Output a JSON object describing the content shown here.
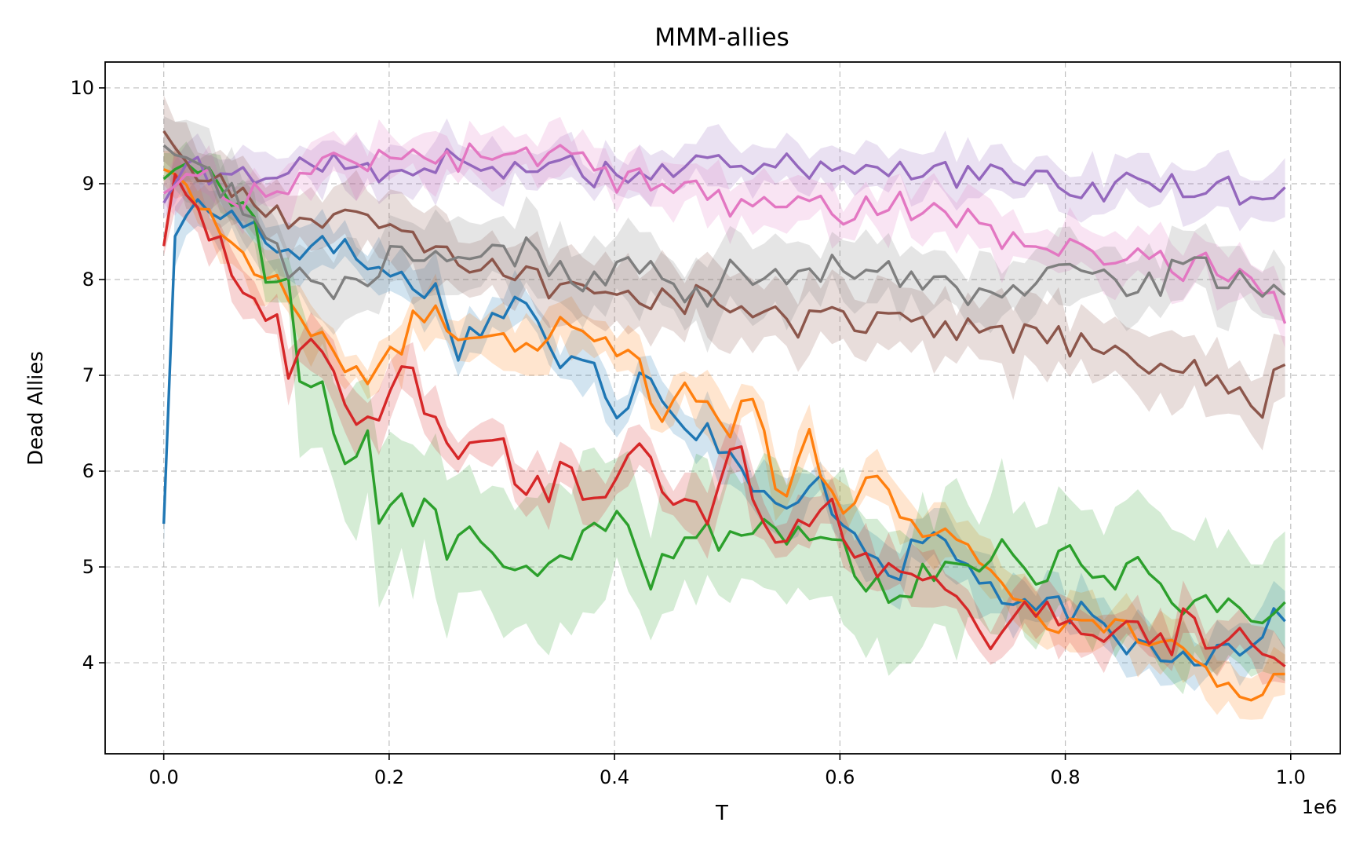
{
  "chart_data": {
    "type": "line",
    "title": "MMM-allies",
    "xlabel": "T",
    "ylabel": "Dead Allies",
    "x_offset_label": "1e6",
    "xlim": [
      -0.052,
      1.044
    ],
    "ylim": [
      3.05,
      10.27
    ],
    "x_ticks": [
      0.0,
      0.2,
      0.4,
      0.6,
      0.8,
      1.0
    ],
    "x_tick_labels": [
      "0.0",
      "0.2",
      "0.4",
      "0.6",
      "0.8",
      "1.0"
    ],
    "y_ticks": [
      4,
      5,
      6,
      7,
      8,
      9,
      10
    ],
    "y_tick_labels": [
      "4",
      "5",
      "6",
      "7",
      "8",
      "9",
      "10"
    ],
    "grid": true,
    "legend": "none",
    "x": [
      0.0,
      0.1,
      0.2,
      0.3,
      0.4,
      0.5,
      0.6,
      0.7,
      0.8,
      0.9,
      0.99
    ],
    "series": [
      {
        "color": "#1f77b4",
        "anchors": [
          [
            0.0,
            5.45
          ],
          [
            0.01,
            8.45
          ],
          [
            0.02,
            8.75
          ],
          [
            0.05,
            8.7
          ],
          [
            0.08,
            8.55
          ],
          [
            0.1,
            8.4
          ],
          [
            0.12,
            8.2
          ],
          [
            0.14,
            8.55
          ],
          [
            0.16,
            8.3
          ],
          [
            0.2,
            8.05
          ],
          [
            0.24,
            7.9
          ],
          [
            0.26,
            7.3
          ],
          [
            0.28,
            7.5
          ],
          [
            0.32,
            7.85
          ],
          [
            0.35,
            7.0
          ],
          [
            0.38,
            7.3
          ],
          [
            0.4,
            6.6
          ],
          [
            0.43,
            7.1
          ],
          [
            0.46,
            6.5
          ],
          [
            0.5,
            6.3
          ],
          [
            0.52,
            5.85
          ],
          [
            0.55,
            5.5
          ],
          [
            0.58,
            5.9
          ],
          [
            0.61,
            5.4
          ],
          [
            0.65,
            4.95
          ],
          [
            0.68,
            5.35
          ],
          [
            0.72,
            4.95
          ],
          [
            0.76,
            4.5
          ],
          [
            0.8,
            4.6
          ],
          [
            0.84,
            4.25
          ],
          [
            0.88,
            4.15
          ],
          [
            0.92,
            4.1
          ],
          [
            0.96,
            4.2
          ],
          [
            0.99,
            4.55
          ]
        ],
        "values": [
          5.45,
          8.4,
          8.05,
          7.75,
          6.6,
          6.3,
          5.55,
          4.95,
          4.6,
          4.1,
          4.55
        ]
      },
      {
        "color": "#ff7f0e",
        "anchors": [
          [
            0.0,
            9.15
          ],
          [
            0.02,
            9.05
          ],
          [
            0.05,
            8.5
          ],
          [
            0.08,
            8.2
          ],
          [
            0.1,
            8.0
          ],
          [
            0.12,
            7.6
          ],
          [
            0.14,
            7.3
          ],
          [
            0.16,
            7.2
          ],
          [
            0.19,
            6.95
          ],
          [
            0.22,
            7.5
          ],
          [
            0.24,
            7.8
          ],
          [
            0.26,
            7.3
          ],
          [
            0.29,
            7.55
          ],
          [
            0.32,
            7.3
          ],
          [
            0.35,
            7.55
          ],
          [
            0.38,
            7.4
          ],
          [
            0.42,
            7.3
          ],
          [
            0.44,
            6.5
          ],
          [
            0.47,
            6.9
          ],
          [
            0.5,
            6.4
          ],
          [
            0.52,
            6.9
          ],
          [
            0.55,
            5.6
          ],
          [
            0.57,
            6.55
          ],
          [
            0.6,
            5.5
          ],
          [
            0.63,
            5.95
          ],
          [
            0.66,
            5.5
          ],
          [
            0.7,
            5.3
          ],
          [
            0.72,
            5.15
          ],
          [
            0.76,
            4.65
          ],
          [
            0.8,
            4.35
          ],
          [
            0.84,
            4.35
          ],
          [
            0.88,
            4.3
          ],
          [
            0.92,
            3.85
          ],
          [
            0.96,
            3.65
          ],
          [
            0.99,
            3.9
          ]
        ],
        "values": [
          9.15,
          8.0,
          6.95,
          7.6,
          7.3,
          6.4,
          5.5,
          5.3,
          4.35,
          4.0,
          3.9
        ]
      },
      {
        "color": "#2ca02c",
        "anchors": [
          [
            0.0,
            9.05
          ],
          [
            0.02,
            9.25
          ],
          [
            0.05,
            8.95
          ],
          [
            0.08,
            8.7
          ],
          [
            0.09,
            8.05
          ],
          [
            0.11,
            8.1
          ],
          [
            0.12,
            6.9
          ],
          [
            0.14,
            6.9
          ],
          [
            0.15,
            6.25
          ],
          [
            0.17,
            6.15
          ],
          [
            0.18,
            6.35
          ],
          [
            0.19,
            5.5
          ],
          [
            0.21,
            5.8
          ],
          [
            0.22,
            5.3
          ],
          [
            0.23,
            5.85
          ],
          [
            0.25,
            5.15
          ],
          [
            0.27,
            5.55
          ],
          [
            0.3,
            4.95
          ],
          [
            0.33,
            4.9
          ],
          [
            0.36,
            5.1
          ],
          [
            0.39,
            5.55
          ],
          [
            0.42,
            5.35
          ],
          [
            0.43,
            4.85
          ],
          [
            0.46,
            5.3
          ],
          [
            0.48,
            5.55
          ],
          [
            0.5,
            5.2
          ],
          [
            0.53,
            5.45
          ],
          [
            0.56,
            5.25
          ],
          [
            0.59,
            5.45
          ],
          [
            0.62,
            4.8
          ],
          [
            0.65,
            4.7
          ],
          [
            0.68,
            5.0
          ],
          [
            0.72,
            4.95
          ],
          [
            0.75,
            5.35
          ],
          [
            0.78,
            4.8
          ],
          [
            0.8,
            5.25
          ],
          [
            0.83,
            4.7
          ],
          [
            0.86,
            5.1
          ],
          [
            0.9,
            4.55
          ],
          [
            0.93,
            4.65
          ],
          [
            0.96,
            4.5
          ],
          [
            0.99,
            4.55
          ]
        ],
        "values": [
          9.05,
          8.1,
          5.5,
          4.95,
          5.4,
          5.2,
          4.8,
          4.95,
          5.0,
          4.6,
          4.55
        ]
      },
      {
        "color": "#d62728",
        "anchors": [
          [
            0.0,
            8.35
          ],
          [
            0.01,
            9.1
          ],
          [
            0.03,
            8.7
          ],
          [
            0.05,
            8.4
          ],
          [
            0.06,
            7.9
          ],
          [
            0.08,
            7.7
          ],
          [
            0.1,
            7.6
          ],
          [
            0.11,
            7.0
          ],
          [
            0.13,
            7.4
          ],
          [
            0.15,
            7.1
          ],
          [
            0.17,
            6.5
          ],
          [
            0.19,
            6.45
          ],
          [
            0.22,
            7.15
          ],
          [
            0.23,
            6.7
          ],
          [
            0.25,
            6.45
          ],
          [
            0.27,
            6.15
          ],
          [
            0.29,
            6.5
          ],
          [
            0.31,
            6.0
          ],
          [
            0.34,
            5.75
          ],
          [
            0.36,
            6.2
          ],
          [
            0.38,
            5.6
          ],
          [
            0.4,
            5.85
          ],
          [
            0.43,
            6.35
          ],
          [
            0.45,
            5.6
          ],
          [
            0.48,
            5.5
          ],
          [
            0.51,
            6.35
          ],
          [
            0.53,
            5.4
          ],
          [
            0.56,
            5.4
          ],
          [
            0.59,
            5.7
          ],
          [
            0.62,
            5.0
          ],
          [
            0.65,
            4.95
          ],
          [
            0.68,
            4.85
          ],
          [
            0.71,
            4.5
          ],
          [
            0.74,
            4.2
          ],
          [
            0.77,
            4.65
          ],
          [
            0.8,
            4.5
          ],
          [
            0.83,
            4.15
          ],
          [
            0.86,
            4.6
          ],
          [
            0.89,
            4.05
          ],
          [
            0.91,
            4.65
          ],
          [
            0.93,
            3.95
          ],
          [
            0.96,
            4.3
          ],
          [
            0.99,
            4.1
          ]
        ],
        "values": [
          8.35,
          7.6,
          6.5,
          6.0,
          5.85,
          5.8,
          5.0,
          4.7,
          4.5,
          4.3,
          4.1
        ]
      },
      {
        "color": "#9467bd",
        "anchors": [
          [
            0.0,
            8.8
          ],
          [
            0.02,
            9.2
          ],
          [
            0.05,
            9.0
          ],
          [
            0.08,
            9.1
          ],
          [
            0.12,
            9.2
          ],
          [
            0.16,
            9.2
          ],
          [
            0.2,
            9.15
          ],
          [
            0.24,
            9.25
          ],
          [
            0.28,
            9.15
          ],
          [
            0.32,
            9.2
          ],
          [
            0.36,
            9.15
          ],
          [
            0.4,
            9.1
          ],
          [
            0.44,
            9.2
          ],
          [
            0.48,
            9.15
          ],
          [
            0.52,
            9.15
          ],
          [
            0.56,
            9.2
          ],
          [
            0.6,
            9.2
          ],
          [
            0.64,
            9.15
          ],
          [
            0.68,
            9.2
          ],
          [
            0.72,
            9.05
          ],
          [
            0.76,
            9.05
          ],
          [
            0.8,
            8.95
          ],
          [
            0.84,
            8.95
          ],
          [
            0.88,
            9.0
          ],
          [
            0.92,
            8.95
          ],
          [
            0.96,
            8.9
          ],
          [
            0.99,
            9.0
          ]
        ],
        "values": [
          8.8,
          9.15,
          9.15,
          9.2,
          9.1,
          9.15,
          9.2,
          9.1,
          8.95,
          8.9,
          9.0
        ]
      },
      {
        "color": "#8c564b",
        "anchors": [
          [
            0.0,
            9.55
          ],
          [
            0.02,
            9.2
          ],
          [
            0.05,
            8.95
          ],
          [
            0.08,
            8.75
          ],
          [
            0.1,
            8.7
          ],
          [
            0.12,
            8.55
          ],
          [
            0.15,
            8.75
          ],
          [
            0.18,
            8.7
          ],
          [
            0.2,
            8.45
          ],
          [
            0.23,
            8.35
          ],
          [
            0.26,
            8.2
          ],
          [
            0.29,
            8.05
          ],
          [
            0.32,
            8.15
          ],
          [
            0.35,
            7.85
          ],
          [
            0.38,
            7.95
          ],
          [
            0.42,
            7.9
          ],
          [
            0.45,
            7.75
          ],
          [
            0.48,
            7.85
          ],
          [
            0.5,
            7.7
          ],
          [
            0.53,
            7.65
          ],
          [
            0.56,
            7.5
          ],
          [
            0.59,
            7.6
          ],
          [
            0.62,
            7.55
          ],
          [
            0.65,
            7.55
          ],
          [
            0.68,
            7.5
          ],
          [
            0.72,
            7.45
          ],
          [
            0.75,
            7.35
          ],
          [
            0.78,
            7.45
          ],
          [
            0.81,
            7.3
          ],
          [
            0.84,
            7.15
          ],
          [
            0.87,
            7.2
          ],
          [
            0.9,
            7.0
          ],
          [
            0.93,
            7.0
          ],
          [
            0.96,
            6.9
          ],
          [
            0.97,
            6.55
          ],
          [
            0.99,
            7.05
          ]
        ],
        "values": [
          9.55,
          8.7,
          8.45,
          8.1,
          7.9,
          7.7,
          7.55,
          7.45,
          7.3,
          7.0,
          7.05
        ]
      },
      {
        "color": "#e377c2",
        "anchors": [
          [
            0.0,
            8.9
          ],
          [
            0.02,
            9.05
          ],
          [
            0.04,
            9.1
          ],
          [
            0.06,
            8.9
          ],
          [
            0.08,
            8.85
          ],
          [
            0.1,
            9.0
          ],
          [
            0.12,
            9.0
          ],
          [
            0.15,
            9.25
          ],
          [
            0.18,
            9.2
          ],
          [
            0.21,
            9.35
          ],
          [
            0.24,
            9.3
          ],
          [
            0.28,
            9.25
          ],
          [
            0.32,
            9.3
          ],
          [
            0.36,
            9.3
          ],
          [
            0.4,
            9.05
          ],
          [
            0.44,
            9.1
          ],
          [
            0.47,
            8.95
          ],
          [
            0.5,
            8.75
          ],
          [
            0.53,
            8.85
          ],
          [
            0.56,
            8.75
          ],
          [
            0.6,
            8.7
          ],
          [
            0.63,
            8.8
          ],
          [
            0.66,
            8.75
          ],
          [
            0.7,
            8.6
          ],
          [
            0.73,
            8.55
          ],
          [
            0.76,
            8.35
          ],
          [
            0.8,
            8.3
          ],
          [
            0.83,
            8.25
          ],
          [
            0.86,
            8.25
          ],
          [
            0.9,
            8.15
          ],
          [
            0.94,
            8.1
          ],
          [
            0.97,
            8.05
          ],
          [
            0.99,
            7.7
          ]
        ],
        "values": [
          8.9,
          9.0,
          9.3,
          9.3,
          9.05,
          8.75,
          8.7,
          8.6,
          8.3,
          8.15,
          7.7
        ]
      },
      {
        "color": "#7f7f7f",
        "anchors": [
          [
            0.0,
            9.4
          ],
          [
            0.02,
            9.2
          ],
          [
            0.05,
            8.95
          ],
          [
            0.08,
            8.7
          ],
          [
            0.1,
            8.3
          ],
          [
            0.12,
            8.0
          ],
          [
            0.15,
            7.9
          ],
          [
            0.18,
            8.05
          ],
          [
            0.21,
            8.3
          ],
          [
            0.24,
            8.2
          ],
          [
            0.27,
            8.15
          ],
          [
            0.3,
            8.25
          ],
          [
            0.33,
            8.3
          ],
          [
            0.36,
            8.0
          ],
          [
            0.39,
            8.05
          ],
          [
            0.42,
            8.1
          ],
          [
            0.45,
            7.95
          ],
          [
            0.48,
            7.8
          ],
          [
            0.5,
            8.05
          ],
          [
            0.53,
            8.0
          ],
          [
            0.56,
            8.05
          ],
          [
            0.59,
            8.1
          ],
          [
            0.62,
            8.15
          ],
          [
            0.65,
            8.05
          ],
          [
            0.68,
            8.0
          ],
          [
            0.72,
            7.85
          ],
          [
            0.76,
            7.95
          ],
          [
            0.8,
            8.1
          ],
          [
            0.84,
            8.0
          ],
          [
            0.88,
            7.9
          ],
          [
            0.91,
            8.25
          ],
          [
            0.94,
            8.0
          ],
          [
            0.97,
            7.95
          ],
          [
            0.99,
            7.9
          ]
        ],
        "values": [
          9.4,
          8.3,
          8.3,
          8.25,
          8.1,
          8.05,
          8.1,
          7.85,
          8.1,
          8.1,
          7.9
        ]
      }
    ]
  }
}
